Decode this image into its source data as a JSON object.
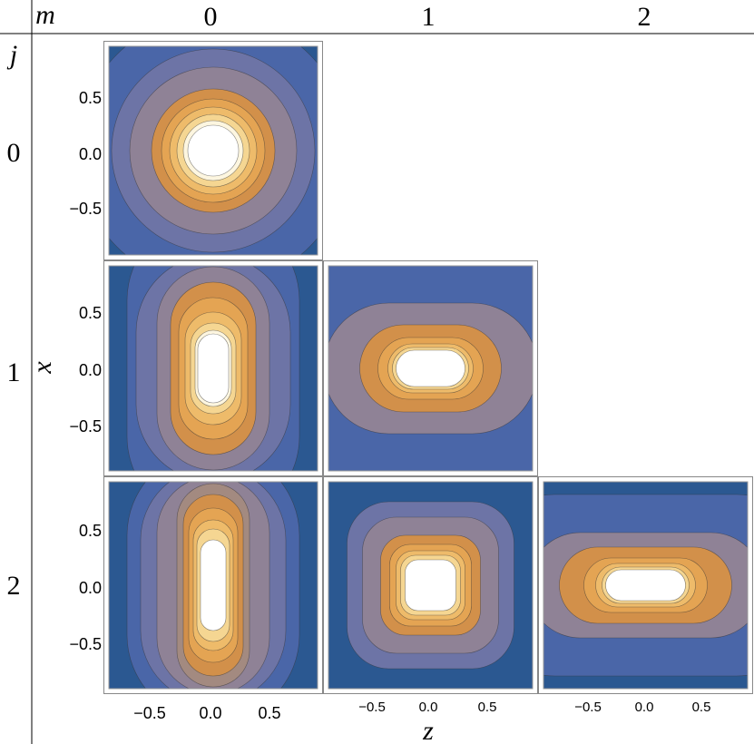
{
  "corner": {
    "column_symbol": "m",
    "row_symbol": "j"
  },
  "columns": [
    "0",
    "1",
    "2"
  ],
  "rows": [
    "0",
    "1",
    "2"
  ],
  "axes": {
    "vertical": "x",
    "horizontal": "z"
  },
  "panel_ticks": {
    "vertical": [
      "0.5",
      "0.0",
      "−0.5"
    ],
    "horizontal": [
      "−0.5",
      "0.0",
      "0.5"
    ]
  }
}
